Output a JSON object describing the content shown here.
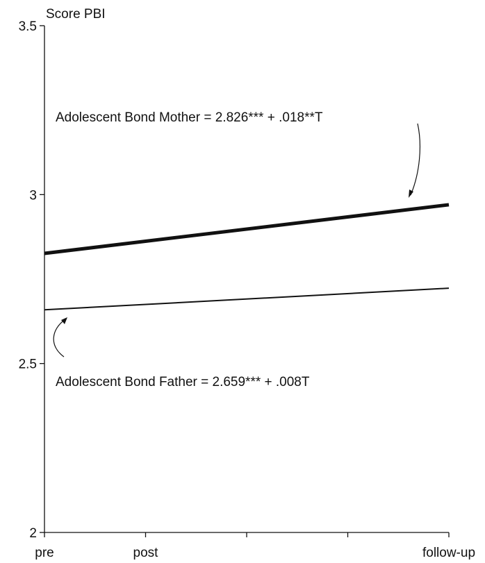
{
  "chart_data": {
    "type": "line",
    "ylabel": "Score PBI",
    "xlabel": "",
    "ylim": [
      2,
      3.5
    ],
    "y_ticks": [
      2,
      2.5,
      3,
      3.5
    ],
    "y_tick_labels": [
      "2",
      "2.5",
      "3",
      "3.5"
    ],
    "x_ticks": [
      0,
      1,
      2,
      3,
      4
    ],
    "x_tick_labels": [
      "pre",
      "post",
      "",
      "",
      "follow-up"
    ],
    "xlim": [
      0,
      4
    ],
    "grid": false,
    "series": [
      {
        "equation": "Adolescent Bond Mother = 2.826*** + .018**T",
        "intercept": 2.826,
        "slope": 0.018,
        "x": [
          0,
          4
        ],
        "y": [
          2.826,
          2.97
        ],
        "color": "#111111",
        "weight": "bold"
      },
      {
        "equation": "Adolescent Bond Father = 2.659*** + .008T",
        "intercept": 2.659,
        "slope": 0.008,
        "x": [
          0,
          4
        ],
        "y": [
          2.659,
          2.723
        ],
        "color": "#111111",
        "weight": "thin"
      }
    ]
  }
}
